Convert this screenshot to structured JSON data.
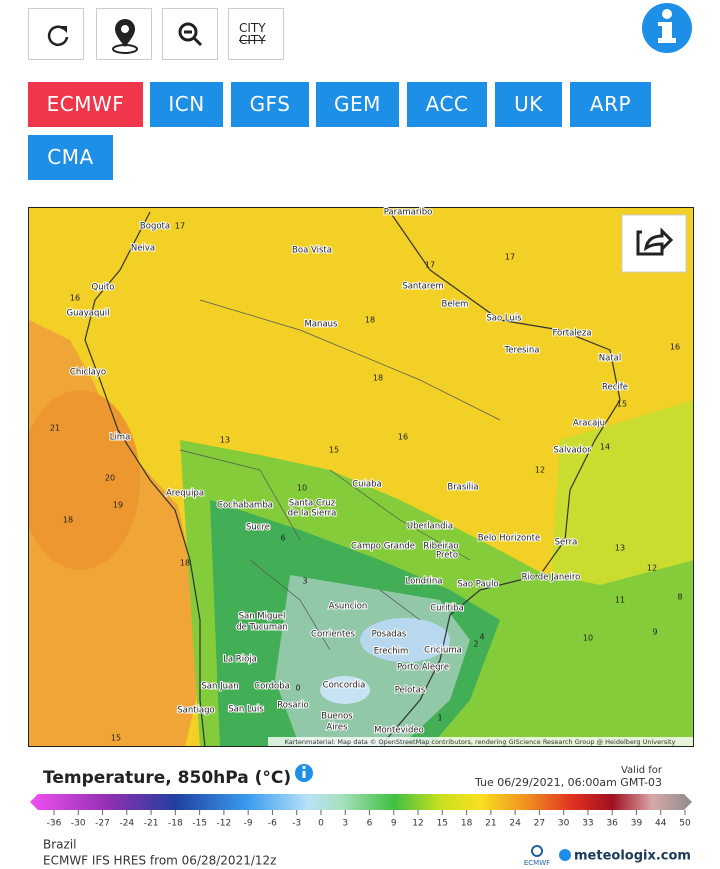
{
  "toolbar": {
    "city_on": "CITY",
    "city_off": "CITY"
  },
  "models": [
    "ECMWF",
    "ICN",
    "GFS",
    "GEM",
    "ACC",
    "UK",
    "ARP",
    "CMA"
  ],
  "active_model": "ECMWF",
  "map": {
    "cities": [
      "Paramaribo",
      "Bogota",
      "Neiva",
      "Boa Vista",
      "Quito",
      "Guayaquil",
      "Santarem",
      "Belem",
      "Sao Luis",
      "Fortaleza",
      "Manaus",
      "Teresina",
      "Natal",
      "Chiclayo",
      "Recife",
      "Aracaju",
      "Lima",
      "Salvador",
      "Cuiaba",
      "Brasilia",
      "Arequipa",
      "Cochabamba",
      "Santa Cruz",
      "de la Sierra",
      "Sucre",
      "Uberlandia",
      "Belo Horizonte",
      "Serra",
      "Campo Grande",
      "Ribeirao",
      "Preto",
      "Rio de Janeiro",
      "Londrina",
      "Sao Paulo",
      "Asuncion",
      "Curitiba",
      "San Miguel",
      "de Tucuman",
      "Corrientes",
      "Posadas",
      "Erechim",
      "Criciuma",
      "La Rioja",
      "Porto Alegre",
      "San Juan",
      "Cordoba",
      "Concordia",
      "Pelotas",
      "Rosario",
      "Santiago",
      "San Luis",
      "Buenos",
      "Aires",
      "Montevideo"
    ],
    "isotherm_labels": [
      17,
      16,
      21,
      20,
      19,
      18,
      18,
      18,
      18,
      17,
      16,
      15,
      14,
      13,
      12,
      11,
      10,
      9,
      8,
      16,
      15,
      12,
      10,
      6,
      3,
      2,
      0,
      4,
      1,
      15,
      17,
      13
    ],
    "attribution": "Kartenmaterial: Map data © OpenStreetMap contributors, rendering GIScience Research Group @ Heidelberg University"
  },
  "legend": {
    "title": "Temperature, 850hPa (°C)",
    "valid_label": "Valid for",
    "valid_time": "Tue 06/29/2021, 06:00am GMT-03",
    "scale_labels": [
      -36,
      -30,
      -27,
      -24,
      -21,
      -18,
      -15,
      -12,
      -9,
      -6,
      -3,
      0,
      3,
      6,
      9,
      12,
      15,
      18,
      21,
      24,
      27,
      30,
      33,
      36,
      39,
      44,
      50
    ]
  },
  "footer": {
    "region": "Brazil",
    "model_run": "ECMWF IFS HRES from 06/28/2021/12z",
    "ecmwf_logo": "ECMWF",
    "brand": "meteologix.com"
  }
}
